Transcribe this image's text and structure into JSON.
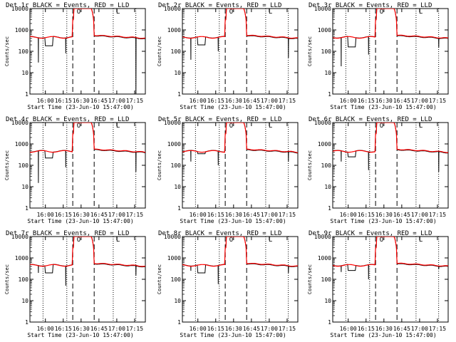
{
  "colors": {
    "events": "#000000",
    "lld": "#ff0000",
    "background": "#ffffff"
  },
  "chart_data": [
    {
      "type": "line",
      "title": "Det 1r BLACK = Events, RED = LLD",
      "xlabel": "Start Time (23-Jun-10 15:47:00)",
      "ylabel": "Counts/sec",
      "ylim": [
        1,
        10000
      ],
      "yscale": "log",
      "xlim": [
        "15:47",
        "17:24"
      ],
      "x_ticks": [
        "16:00",
        "16:15",
        "16:30",
        "16:45",
        "17:00",
        "17:15"
      ],
      "y_ticks": [
        "1",
        "10",
        "100",
        "1000",
        "10000"
      ],
      "series": [
        {
          "name": "Events"
        },
        {
          "name": "LLD"
        }
      ]
    },
    {
      "type": "line",
      "title": "Det 2r BLACK = Events, RED = LLD",
      "xlabel": "Start Time (23-Jun-10 15:47:00)",
      "ylabel": "Counts/sec",
      "ylim": [
        1,
        10000
      ],
      "yscale": "log",
      "xlim": [
        "15:47",
        "17:24"
      ],
      "x_ticks": [
        "16:00",
        "16:15",
        "16:30",
        "16:45",
        "17:00",
        "17:15"
      ],
      "y_ticks": [
        "1",
        "10",
        "100",
        "1000",
        "10000"
      ],
      "series": [
        {
          "name": "Events"
        },
        {
          "name": "LLD"
        }
      ]
    },
    {
      "type": "line",
      "title": "Det 3r BLACK = Events, RED = LLD",
      "xlabel": "Start Time (23-Jun-10 15:47:00)",
      "ylabel": "Counts/sec",
      "ylim": [
        1,
        10000
      ],
      "yscale": "log",
      "xlim": [
        "15:47",
        "17:24"
      ],
      "x_ticks": [
        "16:00",
        "16:15",
        "16:30",
        "16:45",
        "17:00",
        "17:15"
      ],
      "y_ticks": [
        "1",
        "10",
        "100",
        "1000",
        "10000"
      ],
      "series": [
        {
          "name": "Events"
        },
        {
          "name": "LLD"
        }
      ]
    },
    {
      "type": "line",
      "title": "Det 4r BLACK = Events, RED = LLD",
      "xlabel": "Start Time (23-Jun-10 15:47:00)",
      "ylabel": "Counts/sec",
      "ylim": [
        1,
        10000
      ],
      "yscale": "log",
      "xlim": [
        "15:47",
        "17:24"
      ],
      "x_ticks": [
        "16:00",
        "16:15",
        "16:30",
        "16:45",
        "17:00",
        "17:15"
      ],
      "y_ticks": [
        "1",
        "10",
        "100",
        "1000",
        "10000"
      ],
      "series": [
        {
          "name": "Events"
        },
        {
          "name": "LLD"
        }
      ]
    },
    {
      "type": "line",
      "title": "Det 5r BLACK = Events, RED = LLD",
      "xlabel": "Start Time (23-Jun-10 15:47:00)",
      "ylabel": "Counts/sec",
      "ylim": [
        1,
        10000
      ],
      "yscale": "log",
      "xlim": [
        "15:47",
        "17:24"
      ],
      "x_ticks": [
        "16:00",
        "16:15",
        "16:30",
        "16:45",
        "17:00",
        "17:15"
      ],
      "y_ticks": [
        "1",
        "10",
        "100",
        "1000",
        "10000"
      ],
      "series": [
        {
          "name": "Events"
        },
        {
          "name": "LLD"
        }
      ]
    },
    {
      "type": "line",
      "title": "Det 6r BLACK = Events, RED = LLD",
      "xlabel": "Start Time (23-Jun-10 15:47:00)",
      "ylabel": "Counts/sec",
      "ylim": [
        1,
        10000
      ],
      "yscale": "log",
      "xlim": [
        "15:47",
        "17:24"
      ],
      "x_ticks": [
        "16:00",
        "16:15",
        "16:30",
        "16:45",
        "17:00",
        "17:15"
      ],
      "y_ticks": [
        "1",
        "10",
        "100",
        "1000",
        "10000"
      ],
      "series": [
        {
          "name": "Events"
        },
        {
          "name": "LLD"
        }
      ]
    },
    {
      "type": "line",
      "title": "Det 7r BLACK = Events, RED = LLD",
      "xlabel": "Start Time (23-Jun-10 15:47:00)",
      "ylabel": "Counts/sec",
      "ylim": [
        1,
        10000
      ],
      "yscale": "log",
      "xlim": [
        "15:47",
        "17:24"
      ],
      "x_ticks": [
        "16:00",
        "16:15",
        "16:30",
        "16:45",
        "17:00",
        "17:15"
      ],
      "y_ticks": [
        "1",
        "10",
        "100",
        "1000",
        "10000"
      ],
      "series": [
        {
          "name": "Events"
        },
        {
          "name": "LLD"
        }
      ]
    },
    {
      "type": "line",
      "title": "Det 8r BLACK = Events, RED = LLD",
      "xlabel": "Start Time (23-Jun-10 15:47:00)",
      "ylabel": "Counts/sec",
      "ylim": [
        1,
        10000
      ],
      "yscale": "log",
      "xlim": [
        "15:47",
        "17:24"
      ],
      "x_ticks": [
        "16:00",
        "16:15",
        "16:30",
        "16:45",
        "17:00",
        "17:15"
      ],
      "y_ticks": [
        "1",
        "10",
        "100",
        "1000",
        "10000"
      ],
      "series": [
        {
          "name": "Events"
        },
        {
          "name": "LLD"
        }
      ]
    },
    {
      "type": "line",
      "title": "Det 9r BLACK = Events, RED = LLD",
      "xlabel": "Start Time (23-Jun-10 15:47:00)",
      "ylabel": "Counts/sec",
      "ylim": [
        1,
        10000
      ],
      "yscale": "log",
      "xlim": [
        "15:47",
        "17:24"
      ],
      "x_ticks": [
        "16:00",
        "16:15",
        "16:30",
        "16:45",
        "17:00",
        "17:15"
      ],
      "y_ticks": [
        "1",
        "10",
        "100",
        "1000",
        "10000"
      ],
      "series": [
        {
          "name": "Events"
        },
        {
          "name": "LLD"
        }
      ]
    }
  ],
  "markers": {
    "dotted_times": [
      "15:58",
      "16:18",
      "16:57",
      "17:16"
    ],
    "dashed_times": [
      "16:23",
      "16:41"
    ],
    "labels": [
      {
        "text": "O",
        "time": "16:28"
      },
      {
        "text": "L",
        "time": "17:01"
      }
    ]
  },
  "panel_profiles": [
    {
      "black_dips": [
        {
          "time": "15:54",
          "value": 30
        },
        {
          "time": "16:17",
          "value": 80
        },
        {
          "time": "17:16",
          "value": 1
        }
      ],
      "sag": {
        "from": "16:00",
        "to": "16:06",
        "value": 180
      }
    },
    {
      "black_dips": [
        {
          "time": "15:54",
          "value": 40
        },
        {
          "time": "16:17",
          "value": 100
        },
        {
          "time": "17:16",
          "value": 50
        }
      ],
      "sag": {
        "from": "16:00",
        "to": "16:06",
        "value": 200
      }
    },
    {
      "black_dips": [
        {
          "time": "15:54",
          "value": 20
        },
        {
          "time": "16:17",
          "value": 70
        },
        {
          "time": "17:16",
          "value": 150
        }
      ],
      "sag": {
        "from": "16:00",
        "to": "16:06",
        "value": 160
      }
    },
    {
      "black_dips": [
        {
          "time": "15:54",
          "value": 15
        },
        {
          "time": "16:17",
          "value": 80
        },
        {
          "time": "17:16",
          "value": 50
        }
      ],
      "sag": {
        "from": "16:00",
        "to": "16:06",
        "value": 220
      }
    },
    {
      "black_dips": [
        {
          "time": "15:54",
          "value": 150
        },
        {
          "time": "16:17",
          "value": 100
        },
        {
          "time": "17:16",
          "value": 150
        }
      ],
      "sag": {
        "from": "16:00",
        "to": "16:06",
        "value": 350
      }
    },
    {
      "black_dips": [
        {
          "time": "15:54",
          "value": 150
        },
        {
          "time": "16:17",
          "value": 60
        },
        {
          "time": "17:16",
          "value": 50
        }
      ],
      "sag": {
        "from": "16:00",
        "to": "16:06",
        "value": 250
      }
    },
    {
      "black_dips": [
        {
          "time": "15:54",
          "value": 200
        },
        {
          "time": "16:17",
          "value": 50
        },
        {
          "time": "17:16",
          "value": 150
        }
      ],
      "sag": {
        "from": "16:00",
        "to": "16:06",
        "value": 200
      }
    },
    {
      "black_dips": [
        {
          "time": "15:54",
          "value": 250
        },
        {
          "time": "16:17",
          "value": 60
        },
        {
          "time": "17:16",
          "value": 200
        }
      ],
      "sag": {
        "from": "16:00",
        "to": "16:06",
        "value": 200
      }
    },
    {
      "black_dips": [
        {
          "time": "15:54",
          "value": 220
        },
        {
          "time": "16:17",
          "value": 100
        },
        {
          "time": "17:16",
          "value": 300
        }
      ],
      "sag": {
        "from": "16:00",
        "to": "16:06",
        "value": 260
      }
    }
  ]
}
